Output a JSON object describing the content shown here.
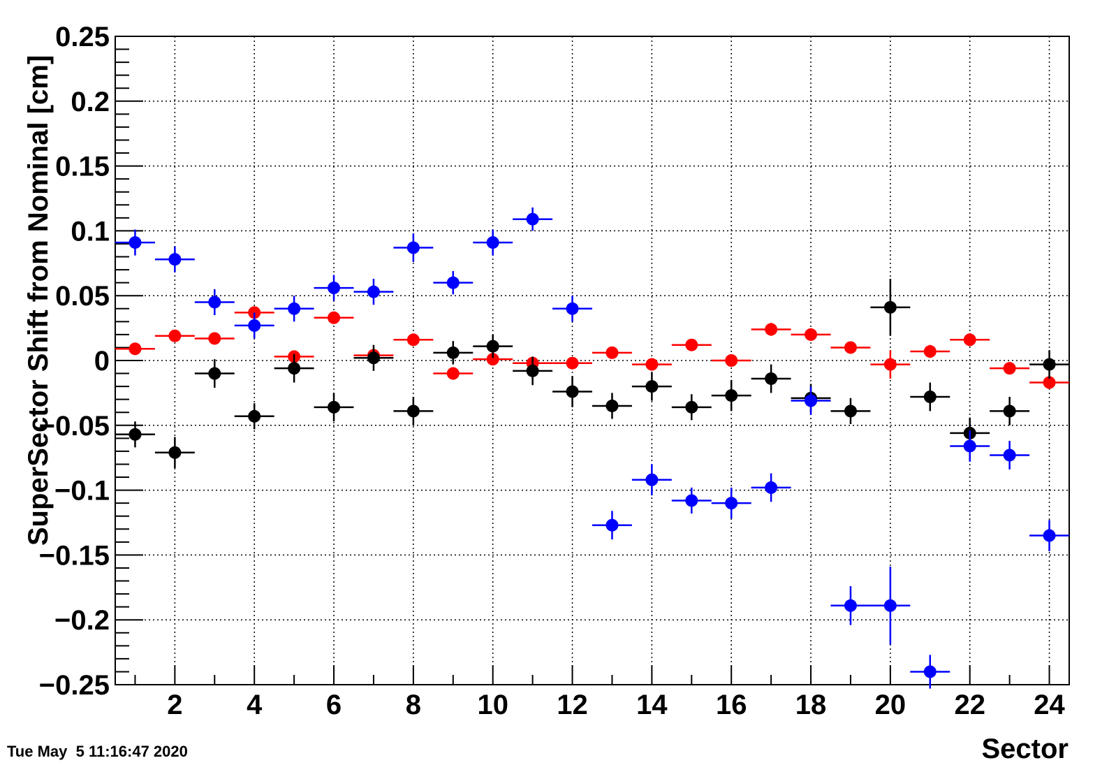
{
  "chart_data": {
    "type": "scatter",
    "xlabel": "Sector",
    "ylabel": "SuperSector Shift from Nominal [cm]",
    "xlim": [
      0.5,
      24.5
    ],
    "ylim": [
      -0.25,
      0.25
    ],
    "x_ticks": [
      2,
      4,
      6,
      8,
      10,
      12,
      14,
      16,
      18,
      20,
      22,
      24
    ],
    "y_ticks": [
      -0.25,
      -0.2,
      -0.15,
      -0.1,
      -0.05,
      0,
      0.05,
      0.1,
      0.15,
      0.2,
      0.25
    ],
    "y_tick_labels": [
      "−0.25",
      "−0.2",
      "−0.15",
      "−0.1",
      "−0.05",
      "0",
      "0.05",
      "0.1",
      "0.15",
      "0.2",
      "0.25"
    ],
    "x_tick_labels": [
      "2",
      "4",
      "6",
      "8",
      "10",
      "12",
      "14",
      "16",
      "18",
      "20",
      "22",
      "24"
    ],
    "grid": true,
    "x_error": 0.5,
    "series": [
      {
        "color": "#ff0000",
        "x": [
          1,
          2,
          3,
          4,
          5,
          6,
          7,
          8,
          9,
          10,
          11,
          12,
          13,
          14,
          15,
          16,
          17,
          18,
          19,
          20,
          21,
          22,
          23,
          24
        ],
        "y": [
          0.009,
          0.019,
          0.017,
          0.037,
          0.003,
          0.033,
          0.004,
          0.016,
          -0.01,
          0.001,
          -0.002,
          -0.002,
          0.006,
          -0.003,
          0.012,
          0.0,
          0.024,
          0.02,
          0.01,
          -0.003,
          0.007,
          0.016,
          -0.006,
          -0.017
        ],
        "yerr": [
          0.004,
          0.004,
          0.004,
          0.004,
          0.004,
          0.004,
          0.004,
          0.004,
          0.004,
          0.004,
          0.004,
          0.004,
          0.004,
          0.004,
          0.004,
          0.004,
          0.005,
          0.004,
          0.004,
          0.011,
          0.005,
          0.005,
          0.004,
          0.004
        ]
      },
      {
        "color": "#000000",
        "x": [
          1,
          2,
          3,
          4,
          5,
          6,
          7,
          8,
          9,
          10,
          11,
          12,
          13,
          14,
          15,
          16,
          17,
          18,
          19,
          20,
          21,
          22,
          23,
          24
        ],
        "y": [
          -0.057,
          -0.071,
          -0.01,
          -0.043,
          -0.006,
          -0.036,
          0.002,
          -0.039,
          0.006,
          0.011,
          -0.008,
          -0.024,
          -0.035,
          -0.02,
          -0.036,
          -0.027,
          -0.014,
          -0.029,
          -0.039,
          0.041,
          -0.028,
          -0.056,
          -0.039,
          -0.003
        ],
        "yerr": [
          0.01,
          0.012,
          0.011,
          0.01,
          0.011,
          0.011,
          0.01,
          0.011,
          0.009,
          0.009,
          0.011,
          0.012,
          0.01,
          0.011,
          0.01,
          0.012,
          0.011,
          0.011,
          0.01,
          0.022,
          0.011,
          0.012,
          0.011,
          0.011
        ]
      },
      {
        "color": "#0000ff",
        "x": [
          1,
          2,
          3,
          4,
          5,
          6,
          7,
          8,
          9,
          10,
          11,
          12,
          13,
          14,
          15,
          16,
          17,
          18,
          19,
          20,
          21,
          22,
          23,
          24
        ],
        "y": [
          0.091,
          0.078,
          0.045,
          0.027,
          0.04,
          0.056,
          0.053,
          0.087,
          0.06,
          0.091,
          0.109,
          0.04,
          -0.127,
          -0.092,
          -0.108,
          -0.11,
          -0.098,
          -0.031,
          -0.189,
          -0.189,
          -0.24,
          -0.066,
          -0.073,
          -0.135
        ],
        "yerr": [
          0.01,
          0.01,
          0.01,
          0.01,
          0.01,
          0.01,
          0.01,
          0.011,
          0.009,
          0.01,
          0.009,
          0.01,
          0.011,
          0.012,
          0.01,
          0.012,
          0.011,
          0.011,
          0.015,
          0.03,
          0.013,
          0.012,
          0.011,
          0.012
        ]
      }
    ]
  },
  "footer": {
    "timestamp": "Tue May  5 11:16:47 2020"
  }
}
